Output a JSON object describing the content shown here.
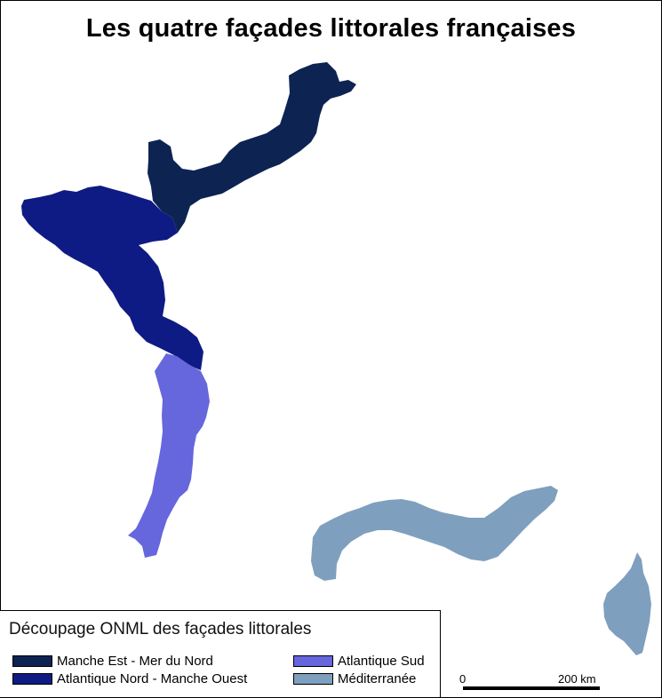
{
  "title": "Les quatre façades littorales françaises",
  "legend": {
    "title": "Découpage ONML des façades littorales",
    "items": [
      {
        "label": "Manche Est - Mer du Nord",
        "color": "#0d2352"
      },
      {
        "label": "Atlantique Nord - Manche Ouest",
        "color": "#0f1b84"
      },
      {
        "label": "Atlantique Sud",
        "color": "#6666dd"
      },
      {
        "label": "Méditerranée",
        "color": "#7f9fbe"
      }
    ]
  },
  "scale": {
    "start": "0",
    "end": "200 km"
  }
}
